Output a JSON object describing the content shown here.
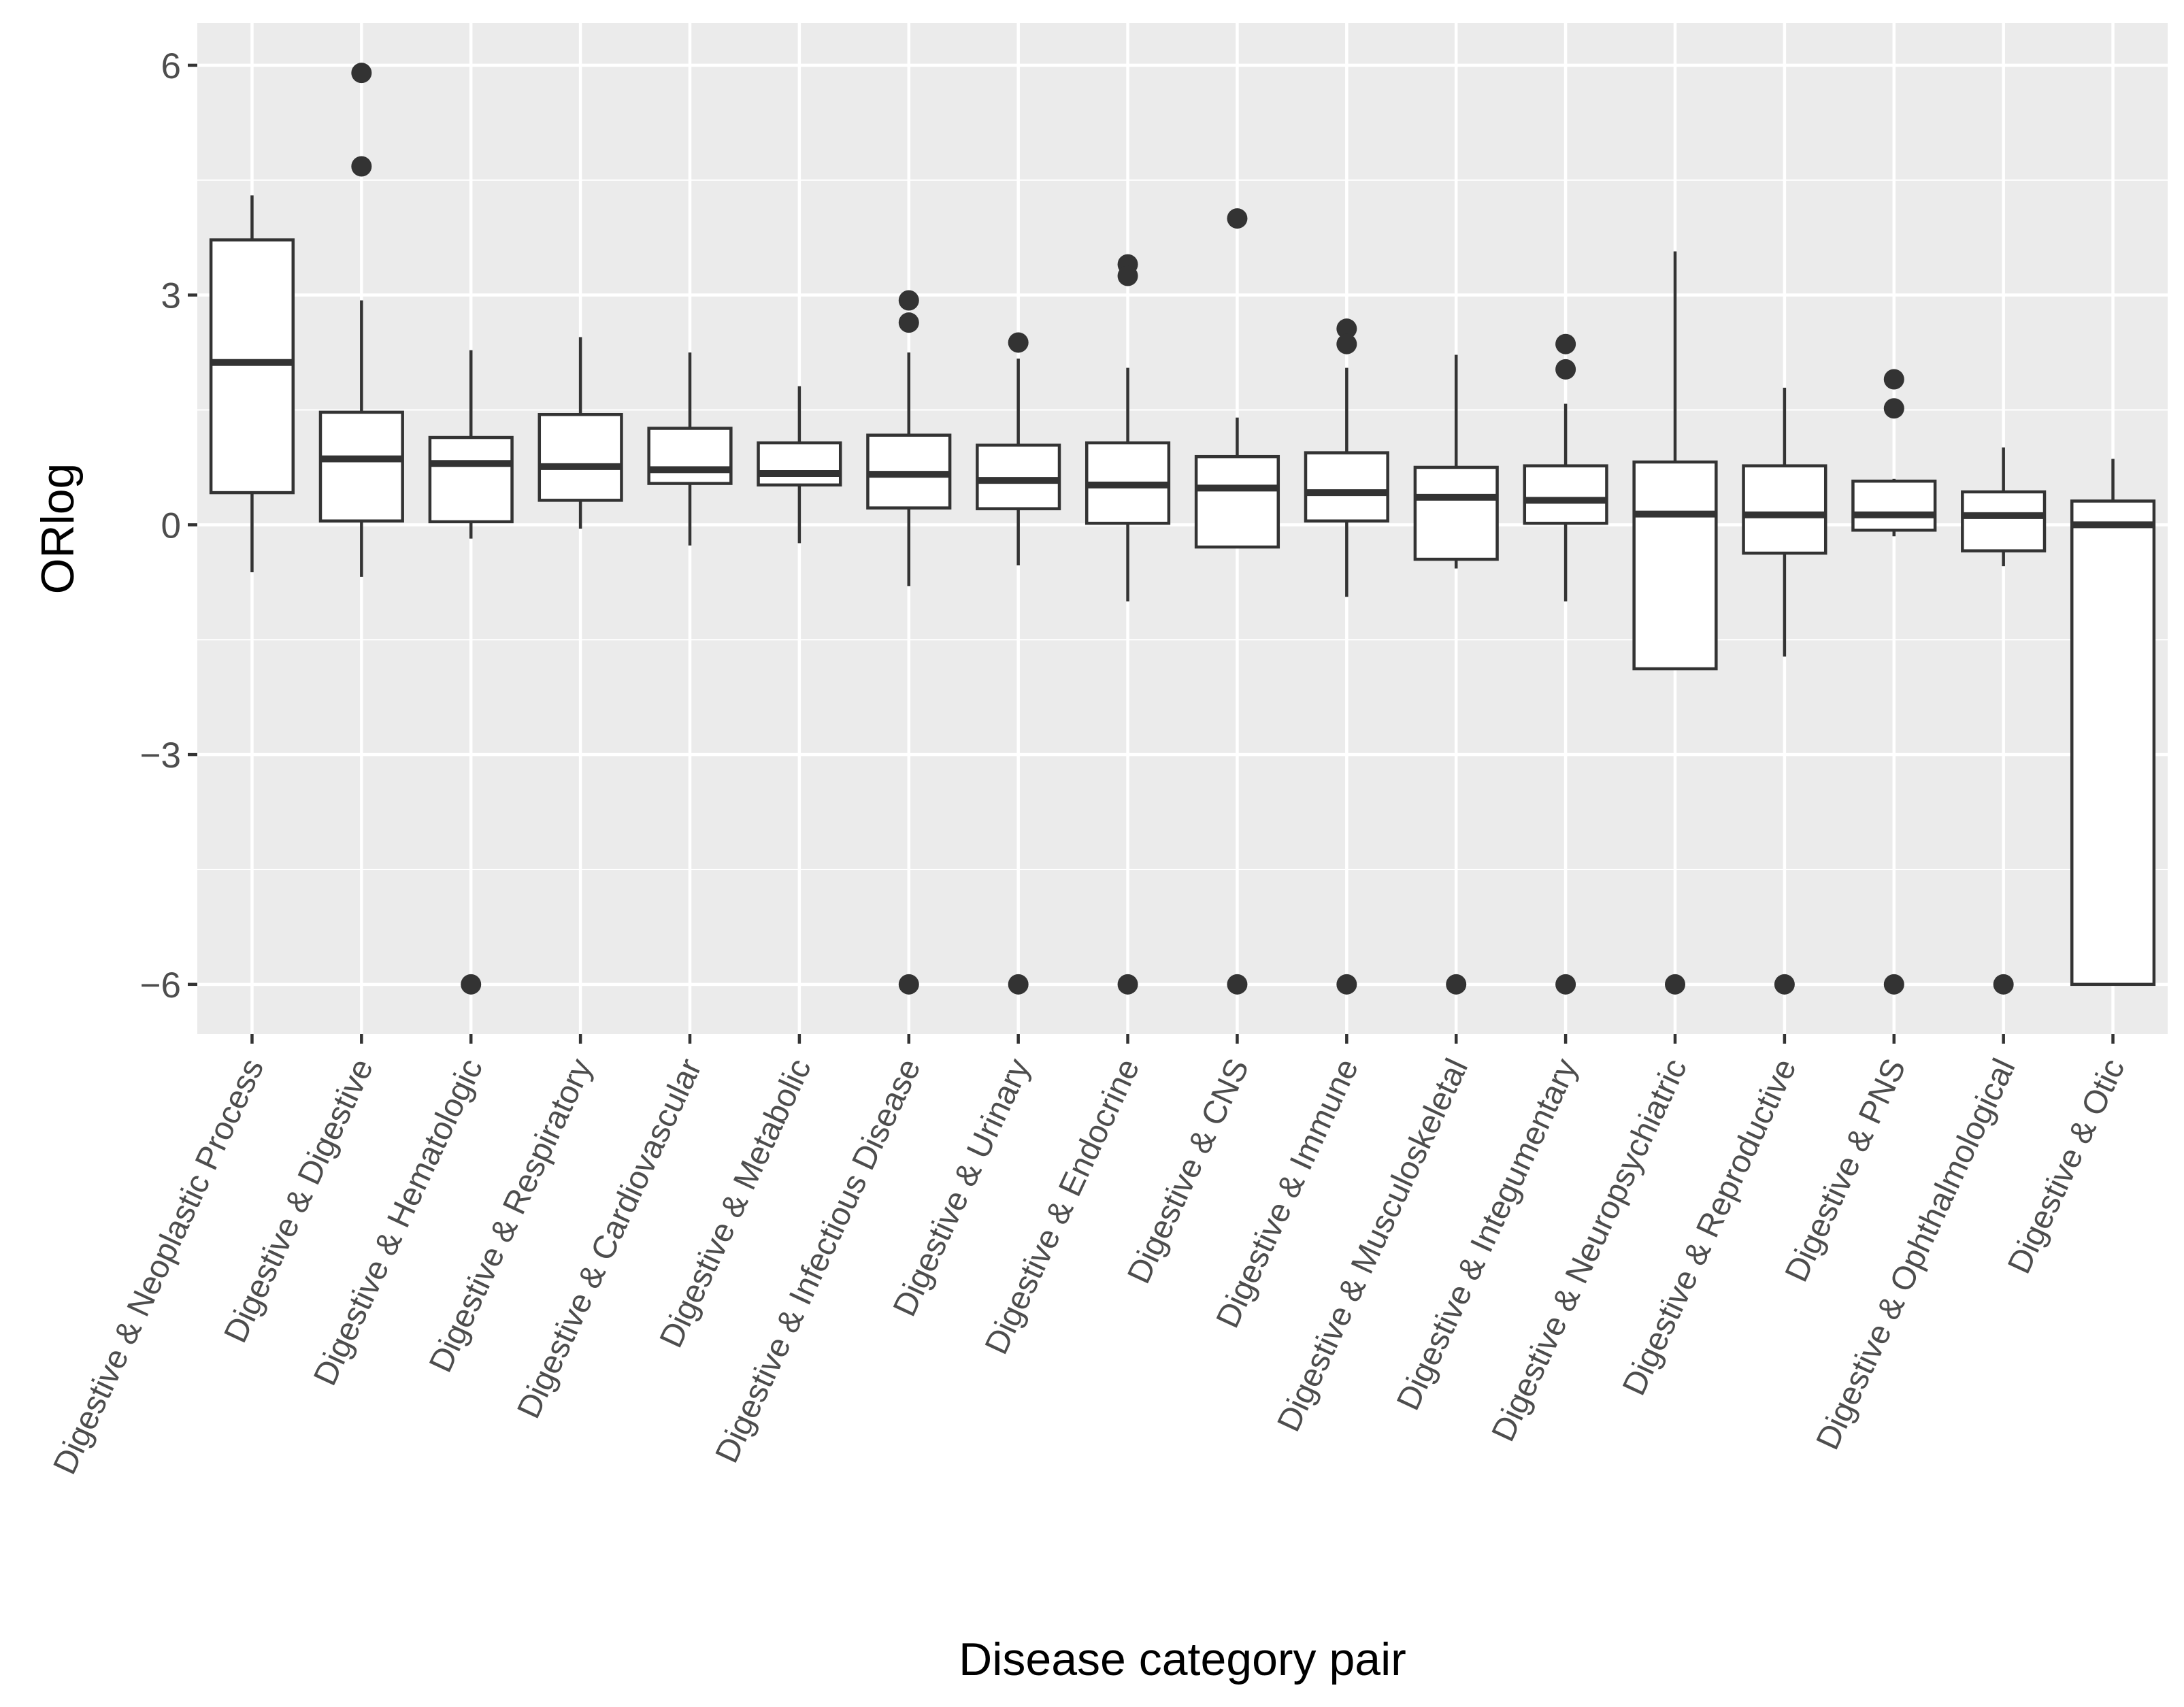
{
  "chart_data": {
    "type": "boxplot",
    "title": "",
    "xlabel": "Disease category pair",
    "ylabel": "ORlog",
    "ylim": [
      -6.65,
      6.55
    ],
    "yticks": [
      6,
      3,
      0,
      -3,
      -6
    ],
    "ytick_labels": [
      "6",
      "3",
      "0",
      "−3",
      "−6"
    ],
    "minor_yticks": [
      4.5,
      1.5,
      -1.5,
      -4.5
    ],
    "grid": true,
    "categories": [
      "Digestive & Neoplastic Process",
      "Digestive & Digestive",
      "Digestive & Hematologic",
      "Digestive & Respiratory",
      "Digestive & Cardiovascular",
      "Digestive & Metabolic",
      "Digestive & Infectious Disease",
      "Digestive & Urinary",
      "Digestive & Endocrine",
      "Digestive & CNS",
      "Digestive & Immune",
      "Digestive & Musculoskeletal",
      "Digestive & Integumentary",
      "Digestive & Neuropsychiatric",
      "Digestive & Reproductive",
      "Digestive & PNS",
      "Digestive & Ophthalmological",
      "Digestive & Otic"
    ],
    "boxes": [
      {
        "whisker_low": -0.62,
        "q1": 0.42,
        "median": 2.12,
        "q3": 3.72,
        "whisker_high": 4.3,
        "outliers": []
      },
      {
        "whisker_low": -0.68,
        "q1": 0.05,
        "median": 0.86,
        "q3": 1.47,
        "whisker_high": 2.93,
        "outliers": [
          5.9,
          4.68
        ]
      },
      {
        "whisker_low": -0.18,
        "q1": 0.04,
        "median": 0.8,
        "q3": 1.14,
        "whisker_high": 2.28,
        "outliers": [
          -6.0
        ]
      },
      {
        "whisker_low": -0.05,
        "q1": 0.32,
        "median": 0.76,
        "q3": 1.44,
        "whisker_high": 2.45,
        "outliers": []
      },
      {
        "whisker_low": -0.27,
        "q1": 0.54,
        "median": 0.72,
        "q3": 1.26,
        "whisker_high": 2.25,
        "outliers": []
      },
      {
        "whisker_low": -0.24,
        "q1": 0.52,
        "median": 0.67,
        "q3": 1.07,
        "whisker_high": 1.81,
        "outliers": []
      },
      {
        "whisker_low": -0.8,
        "q1": 0.22,
        "median": 0.66,
        "q3": 1.17,
        "whisker_high": 2.25,
        "outliers": [
          2.93,
          2.64,
          -6.0
        ]
      },
      {
        "whisker_low": -0.53,
        "q1": 0.21,
        "median": 0.58,
        "q3": 1.04,
        "whisker_high": 2.17,
        "outliers": [
          2.38,
          -6.0
        ]
      },
      {
        "whisker_low": -1.0,
        "q1": 0.02,
        "median": 0.52,
        "q3": 1.07,
        "whisker_high": 2.05,
        "outliers": [
          3.4,
          3.25,
          -6.0
        ]
      },
      {
        "whisker_low": -0.3,
        "q1": -0.29,
        "median": 0.48,
        "q3": 0.89,
        "whisker_high": 1.4,
        "outliers": [
          4.0,
          -6.0
        ]
      },
      {
        "whisker_low": -0.94,
        "q1": 0.05,
        "median": 0.42,
        "q3": 0.94,
        "whisker_high": 2.05,
        "outliers": [
          2.56,
          2.36,
          -6.0
        ]
      },
      {
        "whisker_low": -0.57,
        "q1": -0.45,
        "median": 0.36,
        "q3": 0.75,
        "whisker_high": 2.22,
        "outliers": [
          -6.0
        ]
      },
      {
        "whisker_low": -1.0,
        "q1": 0.02,
        "median": 0.32,
        "q3": 0.77,
        "whisker_high": 1.58,
        "outliers": [
          2.36,
          2.03,
          -6.0
        ]
      },
      {
        "whisker_low": -1.88,
        "q1": -1.88,
        "median": 0.14,
        "q3": 0.82,
        "whisker_high": 3.57,
        "outliers": [
          -6.0
        ]
      },
      {
        "whisker_low": -1.72,
        "q1": -0.37,
        "median": 0.13,
        "q3": 0.77,
        "whisker_high": 1.79,
        "outliers": [
          -6.0
        ]
      },
      {
        "whisker_low": -0.15,
        "q1": -0.07,
        "median": 0.13,
        "q3": 0.57,
        "whisker_high": 0.6,
        "outliers": [
          1.9,
          1.52,
          -6.0
        ]
      },
      {
        "whisker_low": -0.54,
        "q1": -0.34,
        "median": 0.12,
        "q3": 0.43,
        "whisker_high": 1.01,
        "outliers": [
          -6.0
        ]
      },
      {
        "whisker_low": -6.0,
        "q1": -6.0,
        "median": 0.0,
        "q3": 0.31,
        "whisker_high": 0.86,
        "outliers": []
      }
    ]
  }
}
